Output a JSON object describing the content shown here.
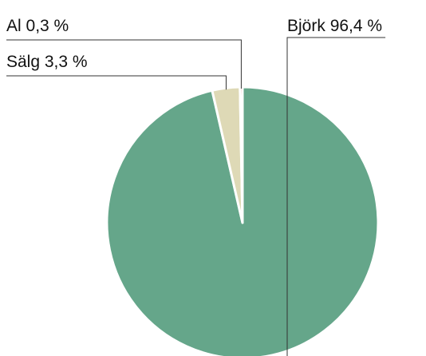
{
  "chart_data": {
    "type": "pie",
    "categories": [
      "Björk",
      "Sälg",
      "Al"
    ],
    "values": [
      96.4,
      3.3,
      0.3
    ],
    "value_labels": [
      "96,4 %",
      "3,3 %",
      "0,3 %"
    ],
    "colors": [
      "#65a68a",
      "#ded9b6",
      "#e02b2b"
    ]
  }
}
